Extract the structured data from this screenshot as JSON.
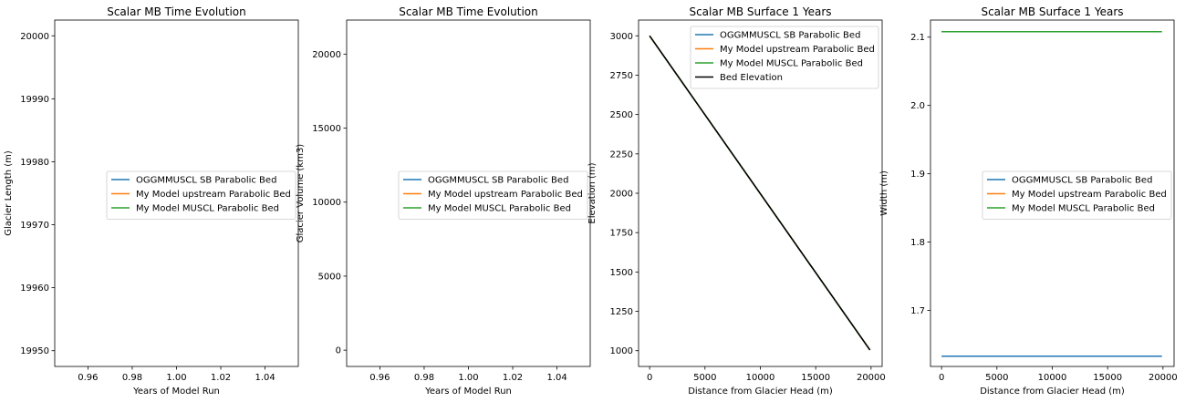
{
  "colors": {
    "blue": "#1f77b4",
    "orange": "#ff7f0e",
    "green": "#2ca02c",
    "black": "#000000"
  },
  "chart_data": [
    {
      "type": "line",
      "title": "Scalar MB Time Evolution",
      "xlabel": "Years of Model Run",
      "ylabel": "Glacier Length (m)",
      "xlim": [
        0.945,
        1.055
      ],
      "ylim": [
        19947.5,
        20002.5
      ],
      "xticks": [
        "0.96",
        "0.98",
        "1.00",
        "1.02",
        "1.04"
      ],
      "xtick_values": [
        0.96,
        0.98,
        1.0,
        1.02,
        1.04
      ],
      "yticks": [
        "19950",
        "19960",
        "19970",
        "19980",
        "19990",
        "20000"
      ],
      "ytick_values": [
        19950,
        19960,
        19970,
        19980,
        19990,
        20000
      ],
      "legend": "center-right",
      "series": [
        {
          "name": "OGGMMUSCL SB Parabolic Bed",
          "color": "blue",
          "x": [],
          "y": []
        },
        {
          "name": "My Model upstream Parabolic Bed",
          "color": "orange",
          "x": [],
          "y": []
        },
        {
          "name": "My Model MUSCL Parabolic Bed",
          "color": "green",
          "x": [],
          "y": []
        }
      ]
    },
    {
      "type": "line",
      "title": "Scalar MB Time Evolution",
      "xlabel": "Years of Model Run",
      "ylabel": "Glacier Volume (km3)",
      "xlim": [
        0.945,
        1.055
      ],
      "ylim": [
        -1100,
        22300
      ],
      "xticks": [
        "0.96",
        "0.98",
        "1.00",
        "1.02",
        "1.04"
      ],
      "xtick_values": [
        0.96,
        0.98,
        1.0,
        1.02,
        1.04
      ],
      "yticks": [
        "0",
        "5000",
        "10000",
        "15000",
        "20000"
      ],
      "ytick_values": [
        0,
        5000,
        10000,
        15000,
        20000
      ],
      "legend": "center-right",
      "series": [
        {
          "name": "OGGMMUSCL SB Parabolic Bed",
          "color": "blue",
          "x": [],
          "y": []
        },
        {
          "name": "My Model upstream Parabolic Bed",
          "color": "orange",
          "x": [],
          "y": []
        },
        {
          "name": "My Model MUSCL Parabolic Bed",
          "color": "green",
          "x": [],
          "y": []
        }
      ]
    },
    {
      "type": "line",
      "title": "Scalar MB Surface 1 Years",
      "xlabel": "Distance from Glacier Head (m)",
      "ylabel": "Elevation (m)",
      "xlim": [
        -1000,
        21000
      ],
      "ylim": [
        900,
        3100
      ],
      "xticks": [
        "0",
        "5000",
        "10000",
        "15000",
        "20000"
      ],
      "xtick_values": [
        0,
        5000,
        10000,
        15000,
        20000
      ],
      "yticks": [
        "1000",
        "1250",
        "1500",
        "1750",
        "2000",
        "2250",
        "2500",
        "2750",
        "3000"
      ],
      "ytick_values": [
        1000,
        1250,
        1500,
        1750,
        2000,
        2250,
        2500,
        2750,
        3000
      ],
      "legend": "upper-right",
      "series": [
        {
          "name": "OGGMMUSCL SB Parabolic Bed",
          "color": "blue",
          "x": [
            0,
            19900
          ],
          "y": [
            3000,
            1005
          ]
        },
        {
          "name": "My Model upstream Parabolic Bed",
          "color": "orange",
          "x": [
            0,
            19900
          ],
          "y": [
            3000,
            1005
          ]
        },
        {
          "name": "My Model MUSCL Parabolic Bed",
          "color": "green",
          "x": [
            0,
            19900
          ],
          "y": [
            3000,
            1005
          ]
        },
        {
          "name": "Bed Elevation",
          "color": "black",
          "x": [
            0,
            19900
          ],
          "y": [
            3000,
            1005
          ]
        }
      ]
    },
    {
      "type": "line",
      "title": "Scalar MB Surface 1 Years",
      "xlabel": "Distance from Glacier Head (m)",
      "ylabel": "Width (m)",
      "xlim": [
        -1000,
        21000
      ],
      "ylim": [
        1.618,
        2.125
      ],
      "xticks": [
        "0",
        "5000",
        "10000",
        "15000",
        "20000"
      ],
      "xtick_values": [
        0,
        5000,
        10000,
        15000,
        20000
      ],
      "yticks": [
        "1.7",
        "1.8",
        "1.9",
        "2.0",
        "2.1"
      ],
      "ytick_values": [
        1.7,
        1.8,
        1.9,
        2.0,
        2.1
      ],
      "legend": "center-right",
      "series": [
        {
          "name": "OGGMMUSCL SB Parabolic Bed",
          "color": "blue",
          "x": [
            0,
            19900
          ],
          "y": [
            1.633,
            1.633
          ]
        },
        {
          "name": "My Model upstream Parabolic Bed",
          "color": "orange",
          "x": [
            0,
            19900
          ],
          "y": [
            2.108,
            2.108
          ]
        },
        {
          "name": "My Model MUSCL Parabolic Bed",
          "color": "green",
          "x": [
            0,
            19900
          ],
          "y": [
            2.108,
            2.108
          ]
        }
      ]
    }
  ]
}
